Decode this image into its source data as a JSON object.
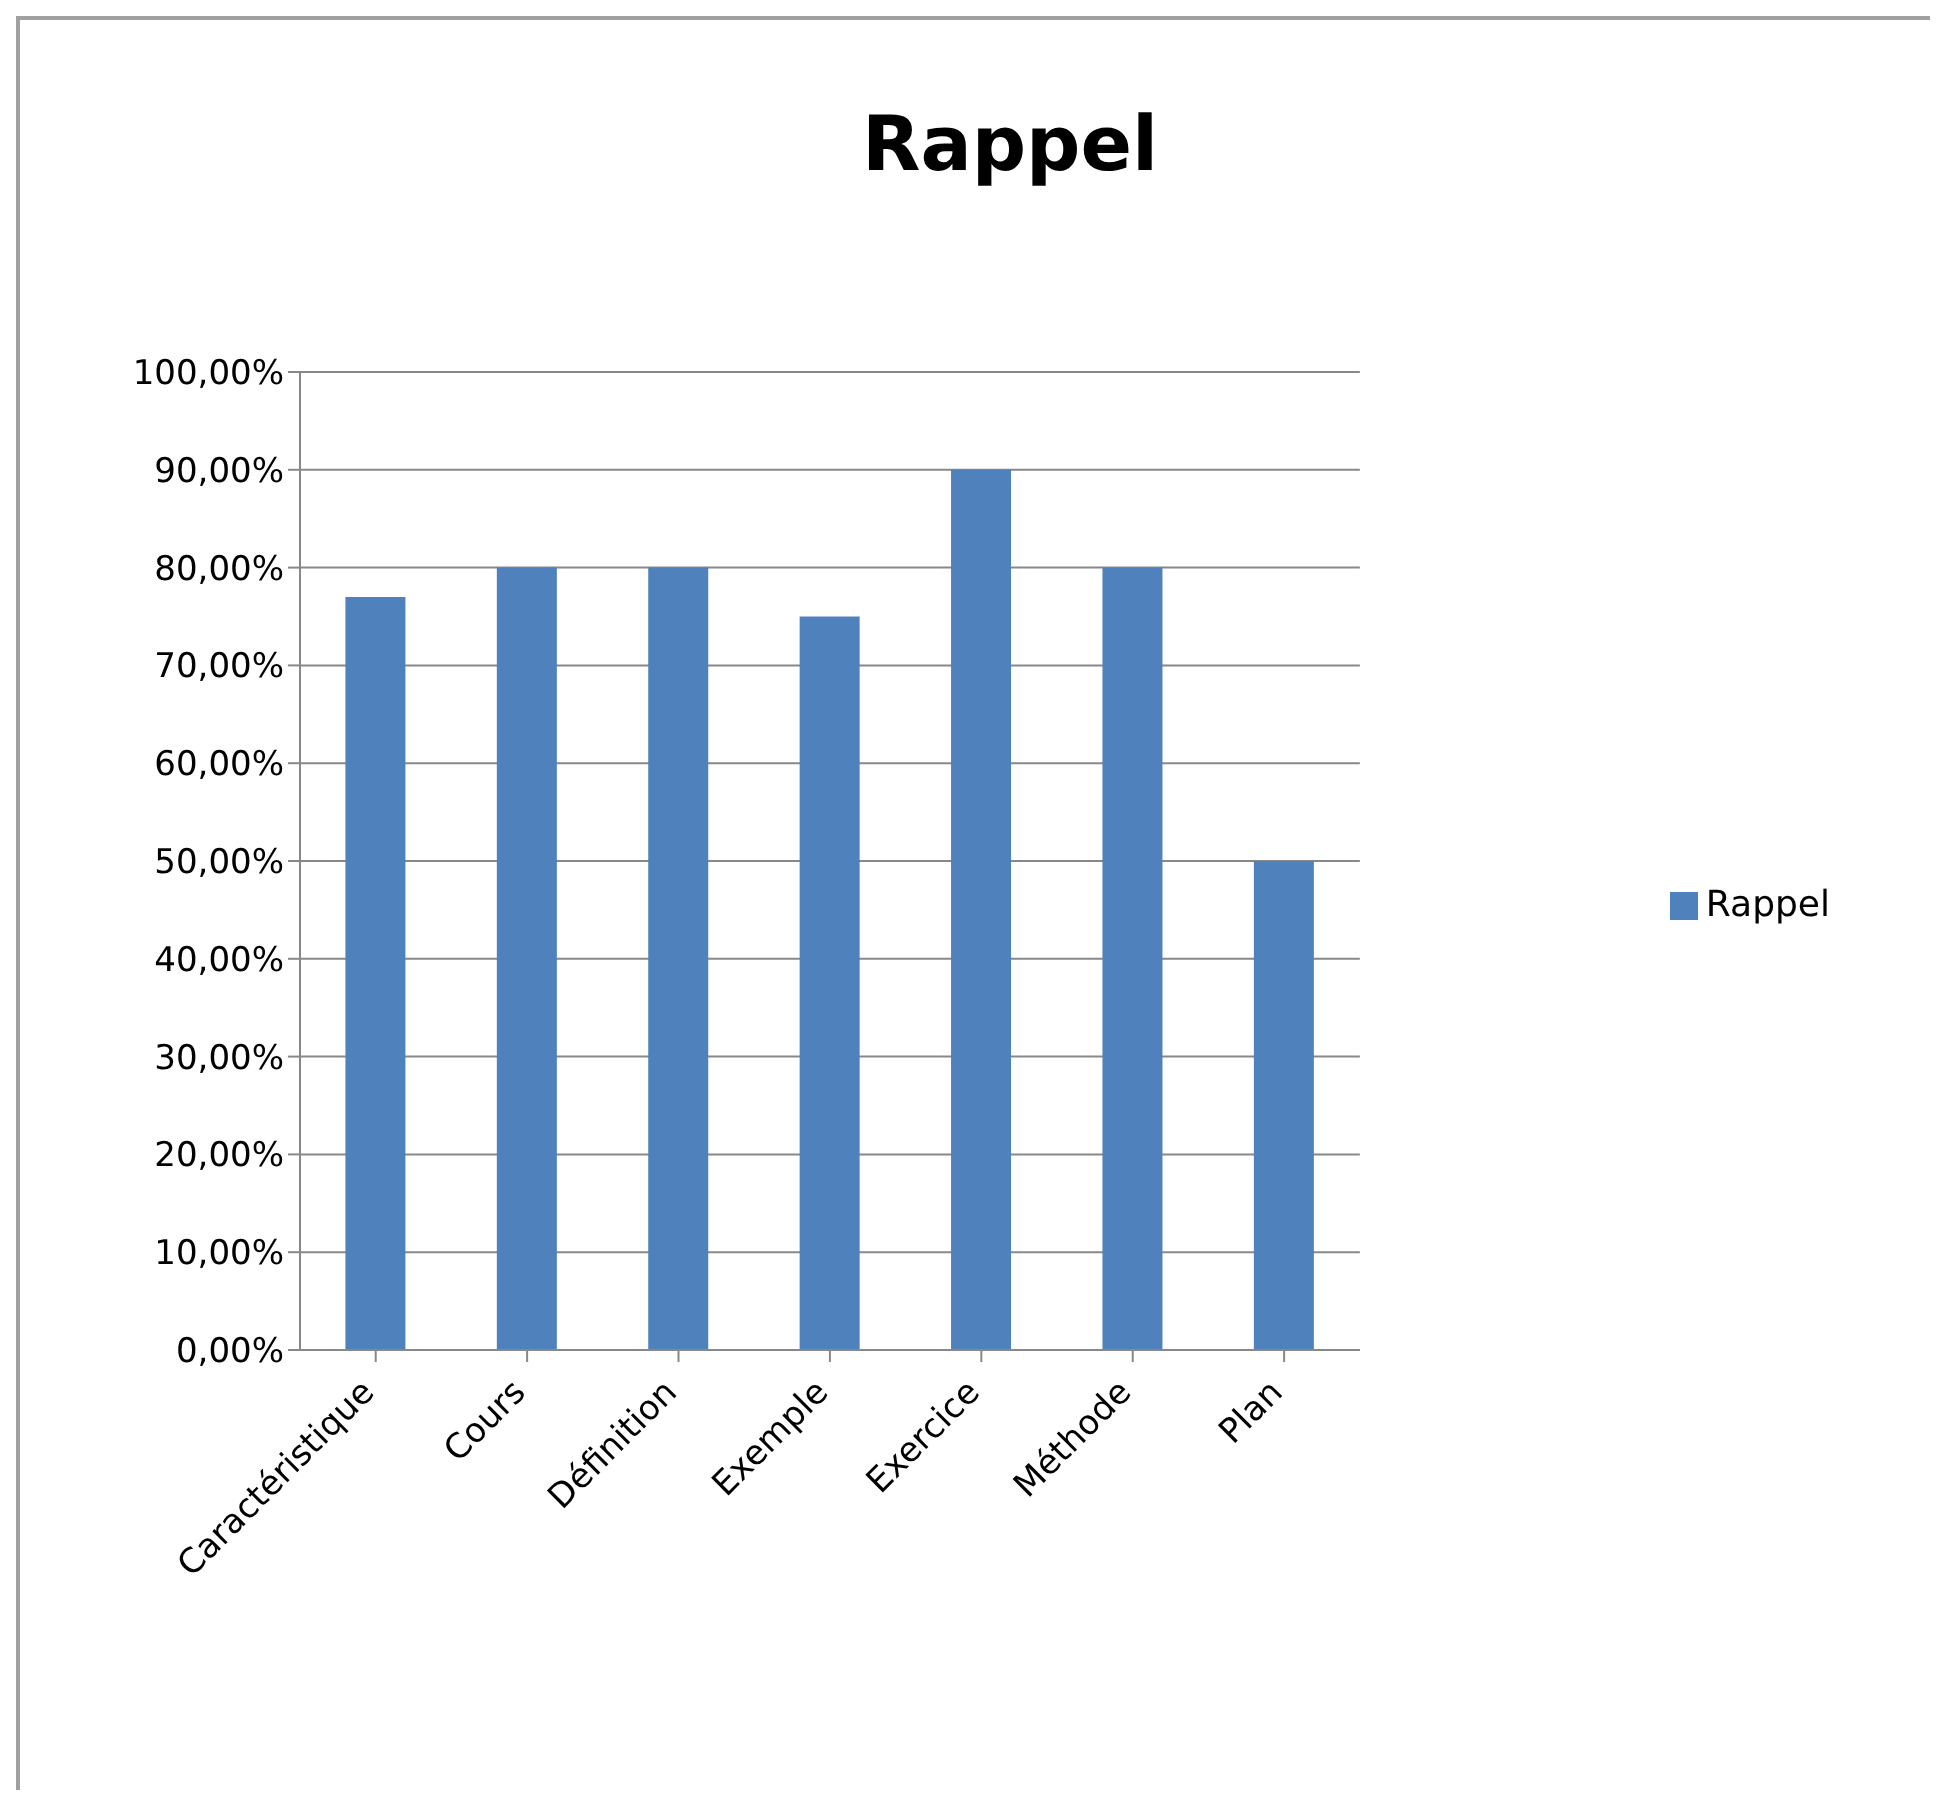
{
  "chart_data": {
    "type": "bar",
    "title": "Rappel",
    "categories": [
      "Caractéristique",
      "Cours",
      "Définition",
      "Exemple",
      "Exercice",
      "Méthode",
      "Plan"
    ],
    "series": [
      {
        "name": "Rappel",
        "color": "#4f81bd",
        "values": [
          77,
          80,
          80,
          75,
          90,
          80,
          50
        ]
      }
    ],
    "ylim": [
      0,
      100
    ],
    "yticks": [
      {
        "value": 0,
        "label": "0,00%"
      },
      {
        "value": 10,
        "label": "10,00%"
      },
      {
        "value": 20,
        "label": "20,00%"
      },
      {
        "value": 30,
        "label": "30,00%"
      },
      {
        "value": 40,
        "label": "40,00%"
      },
      {
        "value": 50,
        "label": "50,00%"
      },
      {
        "value": 60,
        "label": "60,00%"
      },
      {
        "value": 70,
        "label": "70,00%"
      },
      {
        "value": 80,
        "label": "80,00%"
      },
      {
        "value": 90,
        "label": "90,00%"
      },
      {
        "value": 100,
        "label": "100,00%"
      }
    ],
    "grid": "y",
    "legend": "right"
  }
}
